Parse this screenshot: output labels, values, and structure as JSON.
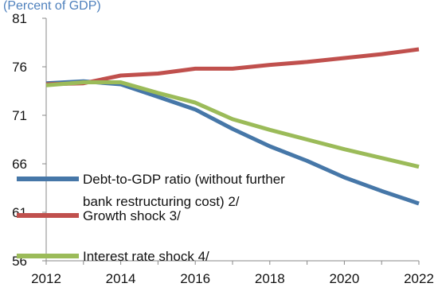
{
  "chart_data": {
    "type": "line",
    "subtitle": "(Percent of GDP)",
    "x": [
      2012,
      2013,
      2014,
      2015,
      2016,
      2017,
      2018,
      2019,
      2020,
      2021,
      2022
    ],
    "xlim": [
      2012,
      2022
    ],
    "xticks": [
      "2012",
      "2014",
      "2016",
      "2018",
      "2020",
      "2022"
    ],
    "ylim": [
      56,
      81
    ],
    "yticks": [
      "56",
      "61",
      "66",
      "71",
      "76",
      "81"
    ],
    "grid": false,
    "legend_position": "lower-left",
    "series": [
      {
        "name": "Debt-to-GDP ratio (without further bank restructuring cost) 2/",
        "name_lines": [
          "Debt-to-GDP ratio (without further",
          "bank restructuring cost) 2/"
        ],
        "color": "#4677a8",
        "values": [
          74.3,
          74.5,
          74.2,
          72.9,
          71.6,
          69.6,
          67.8,
          66.3,
          64.6,
          63.2,
          61.9
        ]
      },
      {
        "name": "Growth shock 3/",
        "name_lines": [
          "Growth shock 3/"
        ],
        "color": "#c0504d",
        "values": [
          74.2,
          74.3,
          75.1,
          75.3,
          75.8,
          75.8,
          76.2,
          76.5,
          76.9,
          77.3,
          77.8
        ]
      },
      {
        "name": "Interest rate shock 4/",
        "name_lines": [
          "Interest rate shock 4/"
        ],
        "color": "#9bbb59",
        "values": [
          74.1,
          74.4,
          74.4,
          73.3,
          72.3,
          70.6,
          69.5,
          68.5,
          67.5,
          66.6,
          65.7
        ]
      }
    ],
    "subtitle_color": "#4f81bd"
  }
}
